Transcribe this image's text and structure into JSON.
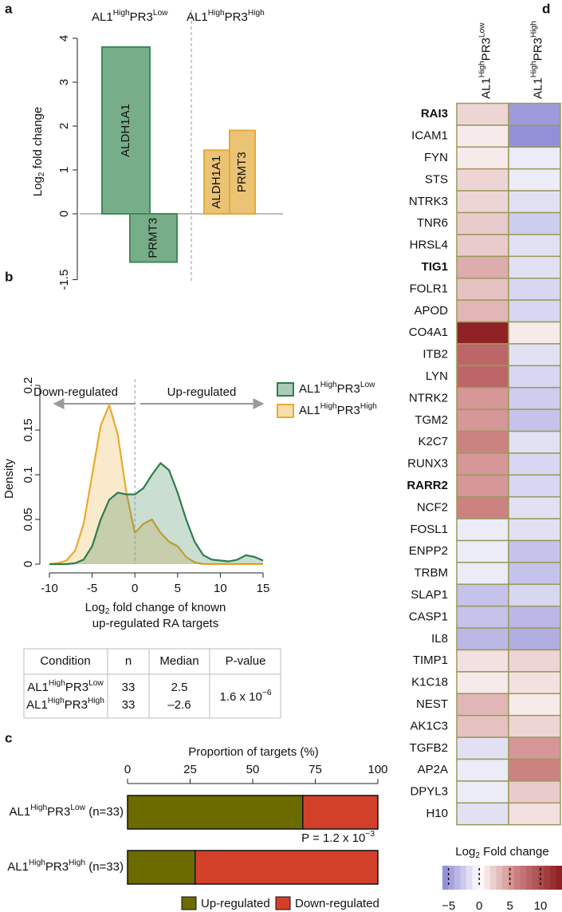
{
  "chart_data": [
    {
      "panel": "a",
      "type": "bar",
      "ylabel": [
        "Log",
        {
          "sub": "2"
        },
        " fold change"
      ],
      "ylim": [
        -1.5,
        4
      ],
      "yticks": [
        -1.5,
        0,
        1,
        2,
        3,
        4
      ],
      "series": [
        {
          "name": [
            "AL1",
            {
              "sup": "High"
            },
            "PR3",
            {
              "sup": "Low"
            }
          ],
          "color": "#3f8a58",
          "categories": [
            "ALDH1A1",
            "PRMT3"
          ],
          "values": [
            3.8,
            -1.1
          ]
        },
        {
          "name": [
            "AL1",
            {
              "sup": "High"
            },
            "PR3",
            {
              "sup": "High"
            }
          ],
          "color": "#e3a93a",
          "categories": [
            "ALDH1A1",
            "PRMT3"
          ],
          "values": [
            1.45,
            1.9
          ]
        }
      ]
    },
    {
      "panel": "b",
      "type": "density",
      "annotations": [
        "Down-regulated",
        "Up-regulated"
      ],
      "xlabel": [
        [
          "Log",
          {
            "sub": "2"
          },
          " fold change of known"
        ],
        "up-regulated RA targets"
      ],
      "ylabel": "Density",
      "xlim": [
        -10,
        15
      ],
      "xticks": [
        -10,
        -5,
        0,
        5,
        10,
        15
      ],
      "ylim": [
        0,
        0.2
      ],
      "yticks": [
        0,
        0.05,
        0.1,
        0.15,
        0.2
      ],
      "x": [
        -10,
        -9,
        -8,
        -7,
        -6,
        -5,
        -4,
        -3,
        -2,
        -1,
        0,
        1,
        2,
        3,
        4,
        5,
        6,
        7,
        8,
        9,
        10,
        11,
        12,
        13,
        14,
        15
      ],
      "series": [
        {
          "name": [
            "AL1",
            {
              "sup": "High"
            },
            "PR3",
            {
              "sup": "Low"
            }
          ],
          "color": "#2e7d4a",
          "values": [
            0,
            0,
            0,
            0.001,
            0.005,
            0.02,
            0.05,
            0.072,
            0.08,
            0.078,
            0.078,
            0.085,
            0.1,
            0.113,
            0.105,
            0.08,
            0.05,
            0.025,
            0.01,
            0.005,
            0.004,
            0.003,
            0.005,
            0.01,
            0.008,
            0.004
          ]
        },
        {
          "name": [
            "AL1",
            {
              "sup": "High"
            },
            "PR3",
            {
              "sup": "High"
            }
          ],
          "color": "#e8aa30",
          "values": [
            0,
            0.001,
            0.004,
            0.015,
            0.045,
            0.1,
            0.155,
            0.178,
            0.145,
            0.08,
            0.035,
            0.045,
            0.05,
            0.035,
            0.025,
            0.02,
            0.008,
            0.002,
            0,
            0,
            0,
            0,
            0,
            0,
            0,
            0
          ]
        }
      ]
    },
    {
      "panel": "c",
      "type": "stacked_bar",
      "orientation": "horizontal",
      "xlabel": "Proportion of targets (%)",
      "xlim": [
        0,
        100
      ],
      "xticks": [
        0,
        25,
        50,
        75,
        100
      ],
      "categories": [
        [
          "AL1",
          {
            "sup": "High"
          },
          "PR3",
          {
            "sup": "Low"
          },
          " (n=33)"
        ],
        [
          "AL1",
          {
            "sup": "High"
          },
          "PR3",
          {
            "sup": "High"
          },
          " (n=33)"
        ]
      ],
      "series": [
        {
          "name": "Up-regulated",
          "color": "#6b6b00",
          "values": [
            70,
            27
          ]
        },
        {
          "name": "Down-regulated",
          "color": "#d3402a",
          "values": [
            30,
            73
          ]
        }
      ],
      "annotation": [
        "P = 1.2 x 10",
        {
          "sup": "−3"
        }
      ]
    },
    {
      "panel": "d",
      "type": "heatmap",
      "columns": [
        [
          "AL1",
          {
            "sup": "High"
          },
          "PR3",
          {
            "sup": "Low"
          }
        ],
        [
          "AL1",
          {
            "sup": "High"
          },
          "PR3",
          {
            "sup": "High"
          }
        ]
      ],
      "rows": [
        {
          "name": "RAI3",
          "bold": true,
          "values": [
            2,
            -5
          ]
        },
        {
          "name": "ICAM1",
          "bold": false,
          "values": [
            1,
            -5.5
          ]
        },
        {
          "name": "FYN",
          "bold": false,
          "values": [
            1,
            -1
          ]
        },
        {
          "name": "STS",
          "bold": false,
          "values": [
            2,
            -1
          ]
        },
        {
          "name": "NTRK3",
          "bold": false,
          "values": [
            2,
            -1.5
          ]
        },
        {
          "name": "TNR6",
          "bold": false,
          "values": [
            2.5,
            -2.5
          ]
        },
        {
          "name": "HRSL4",
          "bold": false,
          "values": [
            2.5,
            -1.5
          ]
        },
        {
          "name": "TIG1",
          "bold": true,
          "values": [
            4,
            -1.5
          ]
        },
        {
          "name": "FOLR1",
          "bold": false,
          "values": [
            3,
            -2
          ]
        },
        {
          "name": "APOD",
          "bold": false,
          "values": [
            3.5,
            -2
          ]
        },
        {
          "name": "CO4A1",
          "bold": false,
          "values": [
            13,
            1
          ]
        },
        {
          "name": "ITB2",
          "bold": false,
          "values": [
            8,
            -1.5
          ]
        },
        {
          "name": "LYN",
          "bold": false,
          "values": [
            8,
            -2
          ]
        },
        {
          "name": "NTRK2",
          "bold": false,
          "values": [
            5,
            -2.5
          ]
        },
        {
          "name": "TGM2",
          "bold": false,
          "values": [
            5,
            -3
          ]
        },
        {
          "name": "K2C7",
          "bold": false,
          "values": [
            6,
            -1.5
          ]
        },
        {
          "name": "RUNX3",
          "bold": false,
          "values": [
            5,
            -2
          ]
        },
        {
          "name": "RARR2",
          "bold": true,
          "values": [
            5,
            -2
          ]
        },
        {
          "name": "NCF2",
          "bold": false,
          "values": [
            6,
            -1.5
          ]
        },
        {
          "name": "FOSL1",
          "bold": false,
          "values": [
            -1,
            -1.5
          ]
        },
        {
          "name": "ENPP2",
          "bold": false,
          "values": [
            -1,
            -3
          ]
        },
        {
          "name": "TRBM",
          "bold": false,
          "values": [
            -1,
            -3
          ]
        },
        {
          "name": "SLAP1",
          "bold": false,
          "values": [
            -3,
            -2
          ]
        },
        {
          "name": "CASP1",
          "bold": false,
          "values": [
            -3,
            -3.5
          ]
        },
        {
          "name": "IL8",
          "bold": false,
          "values": [
            -3.5,
            -4
          ]
        },
        {
          "name": "TIMP1",
          "bold": false,
          "values": [
            1.5,
            2
          ]
        },
        {
          "name": "K1C18",
          "bold": false,
          "values": [
            1,
            1.5
          ]
        },
        {
          "name": "NEST",
          "bold": false,
          "values": [
            3.5,
            1
          ]
        },
        {
          "name": "AK1C3",
          "bold": false,
          "values": [
            3,
            2
          ]
        },
        {
          "name": "TGFB2",
          "bold": false,
          "values": [
            -1.5,
            5
          ]
        },
        {
          "name": "AP2A",
          "bold": false,
          "values": [
            -1,
            6
          ]
        },
        {
          "name": "DPYL3",
          "bold": false,
          "values": [
            -1,
            2.5
          ]
        },
        {
          "name": "H10",
          "bold": false,
          "values": [
            -1.5,
            1.5
          ]
        }
      ],
      "colorbar": {
        "title": [
          "Log",
          {
            "sub": "2"
          },
          " Fold change"
        ],
        "clim": [
          -6,
          13.5
        ],
        "ticks": [
          {
            "value": -5,
            "label": "−5"
          },
          0,
          5,
          10
        ]
      }
    }
  ],
  "table": {
    "header": [
      "Condition",
      "n",
      "Median",
      "P-value"
    ],
    "rows": [
      [
        [
          "AL1",
          {
            "sup": "High"
          },
          "PR3",
          {
            "sup": "Low"
          }
        ],
        "33",
        "2.5"
      ],
      [
        [
          "AL1",
          {
            "sup": "High"
          },
          "PR3",
          {
            "sup": "High"
          }
        ],
        "33",
        "–2.6"
      ]
    ],
    "pvalue": [
      "1.6 x 10",
      {
        "sup": "−6"
      }
    ]
  }
}
